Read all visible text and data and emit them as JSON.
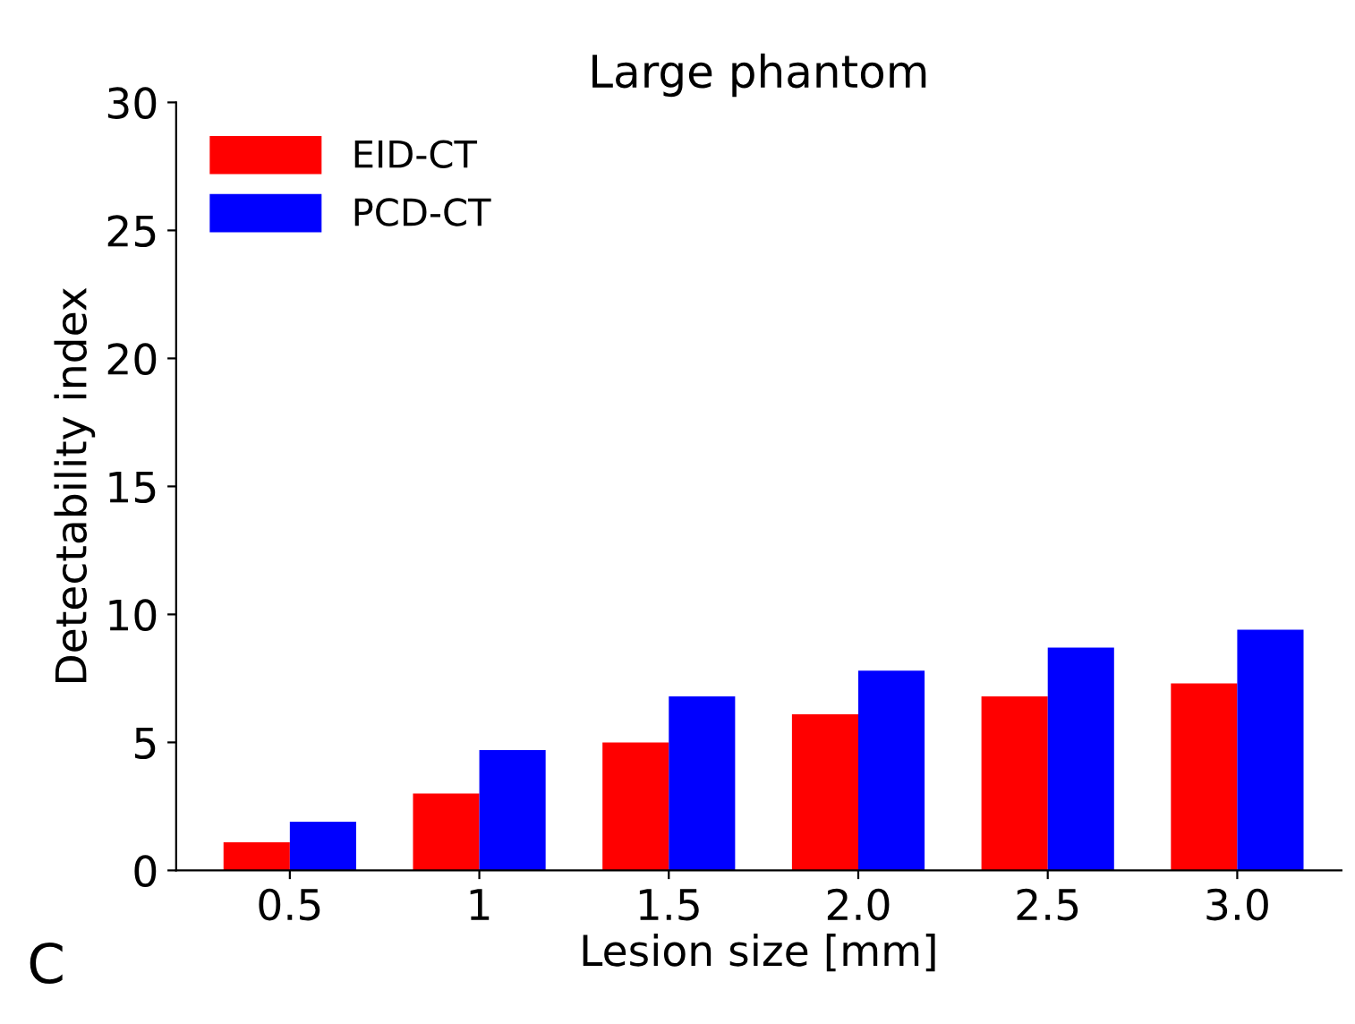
{
  "chart_data": {
    "type": "bar",
    "title": "Large phantom",
    "xlabel": "Lesion size [mm]",
    "ylabel": "Detectability index",
    "categories": [
      "0.5",
      "1",
      "1.5",
      "2.0",
      "2.5",
      "3.0"
    ],
    "series": [
      {
        "name": "EID-CT",
        "color": "#ff0000",
        "values": [
          1.1,
          3.0,
          5.0,
          6.1,
          6.8,
          7.3
        ]
      },
      {
        "name": "PCD-CT",
        "color": "#0000ff",
        "values": [
          1.9,
          4.7,
          6.8,
          7.8,
          8.7,
          9.4
        ]
      }
    ],
    "ylim": [
      0,
      30
    ],
    "yticks": [
      0,
      5,
      10,
      15,
      20,
      25,
      30
    ],
    "grid": false,
    "legend": "top left",
    "annotations": [
      "C"
    ]
  }
}
